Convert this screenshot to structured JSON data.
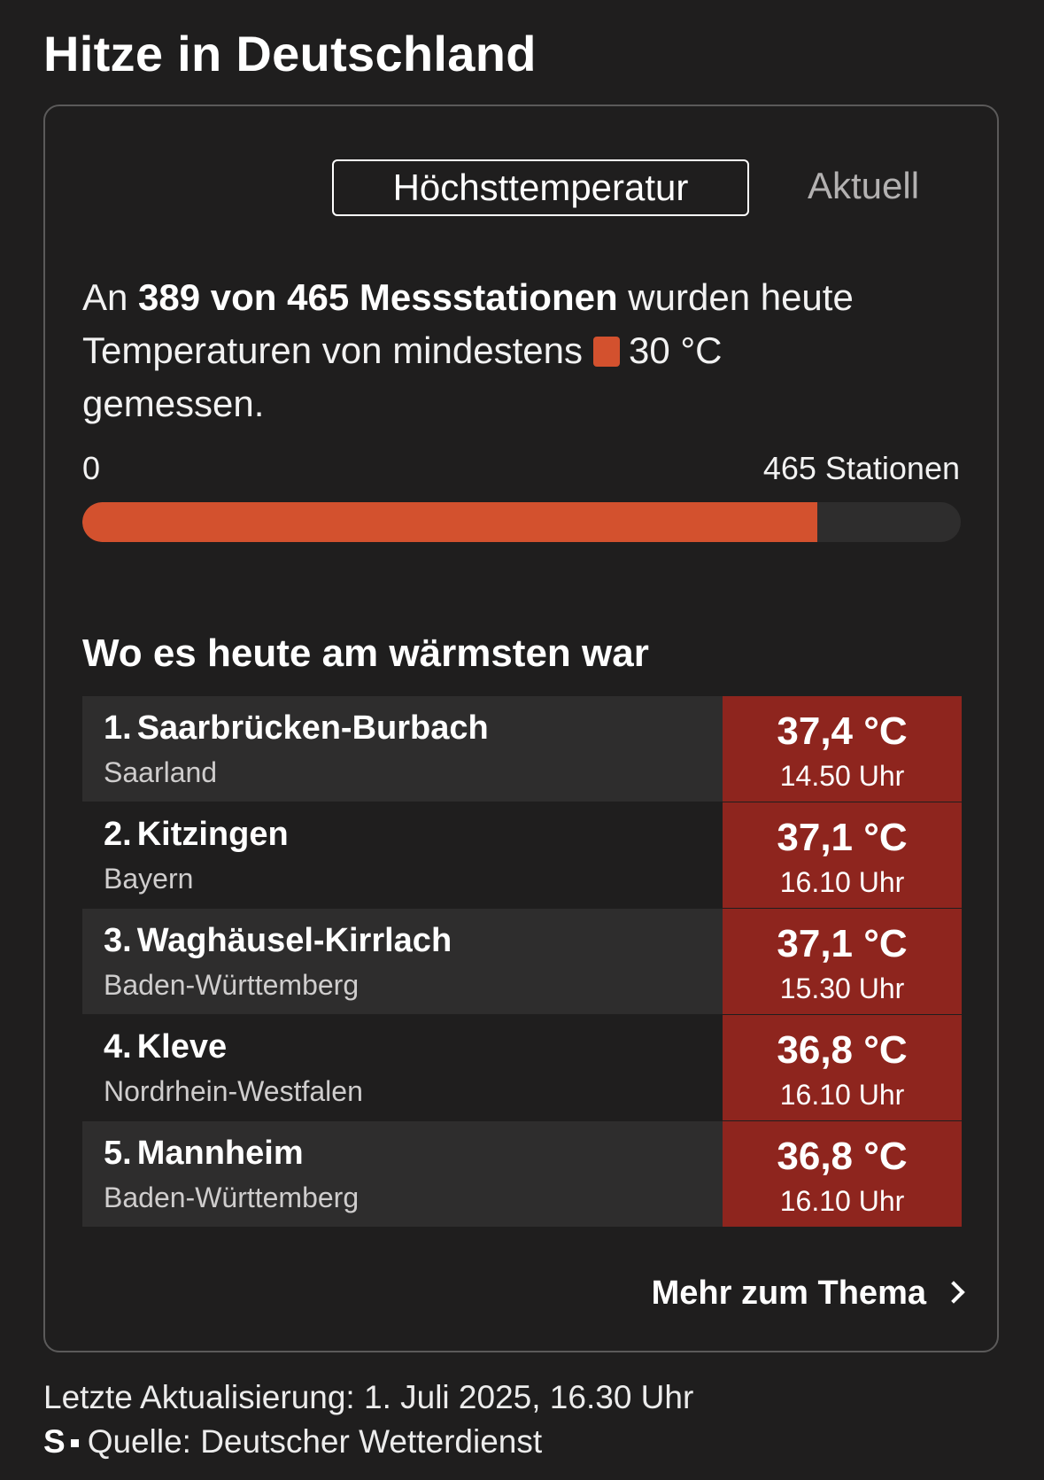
{
  "title": "Hitze in Deutschland",
  "tabs": {
    "active": "Höchsttemperatur",
    "inactive": "Aktuell"
  },
  "summary": {
    "prefix": "An",
    "count_text": "389 von 465 Messstationen",
    "middle": "wurden heute Temperaturen von mindestens",
    "threshold": "30 °C",
    "suffix": "gemessen.",
    "swatch_color": "#d3512e"
  },
  "progress": {
    "min_label": "0",
    "max_label": "465 Stationen",
    "value": 389,
    "max": 465,
    "fill_color": "#d3512e",
    "track_color": "#2e2d2d"
  },
  "ranking": {
    "title": "Wo es heute am wärmsten war",
    "highlight_color": "#8e251e",
    "rows": [
      {
        "rank": "1.",
        "name": "Saarbrücken-Burbach",
        "state": "Saarland",
        "temp": "37,4 °C",
        "time": "14.50 Uhr"
      },
      {
        "rank": "2.",
        "name": "Kitzingen",
        "state": "Bayern",
        "temp": "37,1 °C",
        "time": "16.10 Uhr"
      },
      {
        "rank": "3.",
        "name": "Waghäusel-Kirrlach",
        "state": "Baden-Württemberg",
        "temp": "37,1 °C",
        "time": "15.30 Uhr"
      },
      {
        "rank": "4.",
        "name": "Kleve",
        "state": "Nordrhein-Westfalen",
        "temp": "36,8 °C",
        "time": "16.10 Uhr"
      },
      {
        "rank": "5.",
        "name": "Mannheim",
        "state": "Baden-Württemberg",
        "temp": "36,8 °C",
        "time": "16.10 Uhr"
      }
    ]
  },
  "more_link": {
    "label": "Mehr zum Thema",
    "icon": "chevron-right-icon"
  },
  "footer": {
    "updated": "Letzte Aktualisierung: 1. Juli 2025, 16.30 Uhr",
    "brand_icon": "spiegel-s-logo",
    "brand_letter": "S",
    "source": "Quelle: Deutscher Wetterdienst"
  }
}
